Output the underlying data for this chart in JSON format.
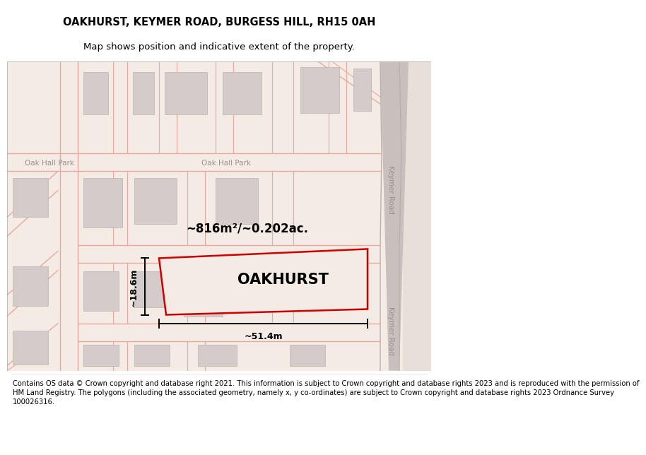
{
  "title_line1": "OAKHURST, KEYMER ROAD, BURGESS HILL, RH15 0AH",
  "title_line2": "Map shows position and indicative extent of the property.",
  "footer_text_lines": [
    "Contains OS data © Crown copyright and database right 2021. This information is subject to Crown copyright and database rights 2023 and is reproduced with the permission of",
    "HM Land Registry. The polygons (including the associated geometry, namely x, y co-ordinates) are subject to Crown copyright and database rights 2023 Ordnance Survey",
    "100026316."
  ],
  "map_bg": "#f5ebe5",
  "road_line_color": "#e8a8a0",
  "building_fill": "#d4ccca",
  "building_edge": "#bcb4b0",
  "plot_fill": "#f5ebe5",
  "plot_outline": "#cc0000",
  "plot_lw": 1.8,
  "keymer_road_fill": "#c8c0bc",
  "keymer_right_fill": "#e8e0da",
  "street_label_color": "#999090",
  "property_label": "OAKHURST",
  "area_label": "~816m²/~0.202ac.",
  "width_label": "~51.4m",
  "height_label": "~18.6m"
}
